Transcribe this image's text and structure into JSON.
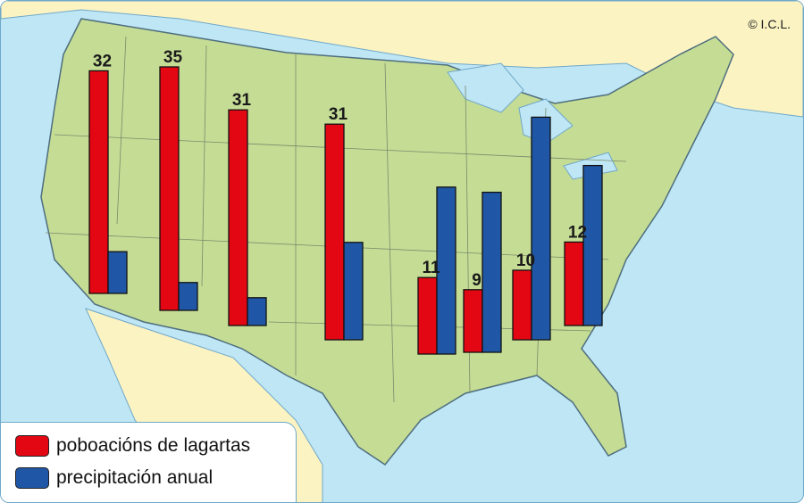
{
  "copyright": "© I.C.L.",
  "colors": {
    "population": "#e30613",
    "precipitation": "#1f57a6",
    "land": "#c5dc95",
    "water": "#bfe6f5",
    "neighbor_land": "#fcf3c3"
  },
  "legend": {
    "population_label": "poboacións de lagartas",
    "precipitation_label": "precipitación anual"
  },
  "chart_data": {
    "type": "bar",
    "series": [
      {
        "values": [
          32,
          35,
          31,
          31,
          11,
          9,
          10,
          12
        ]
      },
      {
        "values": [
          6,
          4,
          4,
          14,
          24,
          23,
          32,
          23
        ]
      }
    ],
    "data_labels": [
      "32",
      "35",
      "31",
      "31",
      "11",
      "9",
      "10",
      "12"
    ],
    "legend": [
      "poboacións de lagartas",
      "precipitación anual"
    ],
    "ylim": [
      0,
      35
    ],
    "background": "map of the United States"
  }
}
